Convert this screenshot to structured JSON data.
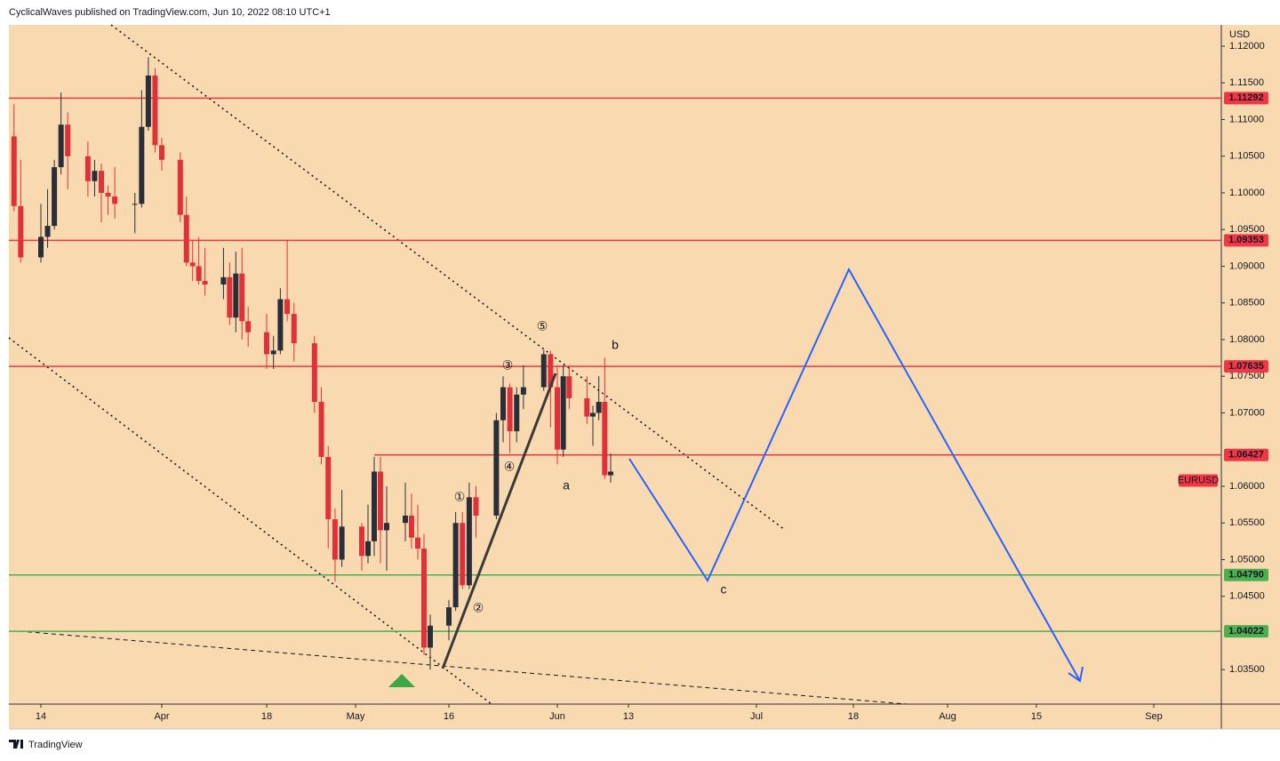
{
  "header": {
    "text": "CyclicalWaves published on TradingView.com, Jun 10, 2022 08:10 UTC+1"
  },
  "footer": {
    "brand": "TradingView"
  },
  "chart_data": {
    "type": "candlestick",
    "currency": "USD",
    "symbol": "EURUSD",
    "up_color": "#2a2e39",
    "down_color": "#e0303a",
    "x": [
      "03-10",
      "03-11",
      "03-14",
      "03-15",
      "03-16",
      "03-17",
      "03-18",
      "03-21",
      "03-22",
      "03-23",
      "03-24",
      "03-25",
      "03-28",
      "03-29",
      "03-30",
      "03-31",
      "04-01",
      "04-04",
      "04-05",
      "04-06",
      "04-07",
      "04-08",
      "04-11",
      "04-12",
      "04-13",
      "04-14",
      "04-15",
      "04-18",
      "04-19",
      "04-20",
      "04-21",
      "04-22",
      "04-25",
      "04-26",
      "04-27",
      "04-28",
      "04-29",
      "05-02",
      "05-03",
      "05-04",
      "05-05",
      "05-06",
      "05-09",
      "05-10",
      "05-11",
      "05-12",
      "05-13",
      "05-16",
      "05-17",
      "05-18",
      "05-19",
      "05-20",
      "05-23",
      "05-24",
      "05-25",
      "05-26",
      "05-27",
      "05-30",
      "05-31",
      "06-01",
      "06-02",
      "06-03",
      "06-06",
      "06-07",
      "06-08",
      "06-09",
      "06-10"
    ],
    "open": [
      1.1077,
      1.0982,
      1.0912,
      1.094,
      1.0955,
      1.1035,
      1.1093,
      1.105,
      1.1016,
      1.103,
      1.1,
      1.0995,
      1.0985,
      1.0985,
      1.109,
      1.116,
      1.1065,
      1.1045,
      1.097,
      1.0905,
      1.09,
      1.088,
      1.0875,
      1.0885,
      1.083,
      1.089,
      1.0825,
      1.081,
      1.078,
      1.0785,
      1.0855,
      1.0835,
      1.0795,
      1.0715,
      1.064,
      1.0555,
      1.05,
      1.0545,
      1.0505,
      1.0525,
      1.062,
      1.054,
      1.055,
      1.056,
      1.053,
      1.0515,
      1.038,
      1.041,
      1.0435,
      1.055,
      1.0465,
      1.0585,
      1.056,
      1.069,
      1.0735,
      1.0675,
      1.0725,
      1.0735,
      1.078,
      1.0735,
      1.065,
      1.075,
      1.072,
      1.0695,
      1.07,
      1.0715,
      1.0615
    ],
    "high": [
      1.1121,
      1.1045,
      1.0985,
      1.1005,
      1.1045,
      1.1137,
      1.111,
      1.107,
      1.1045,
      1.104,
      1.101,
      1.1035,
      1.1,
      1.114,
      1.1185,
      1.117,
      1.1075,
      1.1055,
      1.0995,
      1.0935,
      1.094,
      1.0925,
      1.0925,
      1.0905,
      1.092,
      1.0925,
      1.0845,
      1.0835,
      1.0805,
      1.087,
      1.0935,
      1.085,
      1.0805,
      1.0735,
      1.0655,
      1.057,
      1.0595,
      1.055,
      1.0575,
      1.064,
      1.064,
      1.06,
      1.0605,
      1.059,
      1.0575,
      1.0535,
      1.0425,
      1.0445,
      1.0565,
      1.0565,
      1.0605,
      1.06,
      1.07,
      1.075,
      1.074,
      1.0735,
      1.0765,
      1.0786,
      1.0785,
      1.0765,
      1.0765,
      1.0765,
      1.075,
      1.071,
      1.075,
      1.0775,
      1.0645
    ],
    "low": [
      1.0975,
      1.0905,
      1.0905,
      1.0925,
      1.095,
      1.1025,
      1.1005,
      1.0995,
      1.0995,
      1.096,
      1.097,
      1.0965,
      1.0945,
      1.098,
      1.1085,
      1.1055,
      1.103,
      1.096,
      1.09,
      1.088,
      1.0875,
      1.086,
      1.0855,
      1.082,
      1.081,
      1.08,
      1.079,
      1.076,
      1.076,
      1.078,
      1.0825,
      1.077,
      1.07,
      1.063,
      1.0515,
      1.047,
      1.049,
      1.0485,
      1.0495,
      1.0505,
      1.0495,
      1.0485,
      1.0525,
      1.0515,
      1.05,
      1.037,
      1.035,
      1.039,
      1.043,
      1.046,
      1.046,
      1.053,
      1.0555,
      1.066,
      1.0645,
      1.066,
      1.0705,
      1.073,
      1.068,
      1.063,
      1.064,
      1.0705,
      1.0685,
      1.0655,
      1.069,
      1.061,
      1.0605
    ],
    "close": [
      1.0982,
      1.0912,
      1.094,
      1.0955,
      1.1035,
      1.1093,
      1.105,
      1.1016,
      1.103,
      1.1,
      1.0995,
      1.0985,
      1.0985,
      1.109,
      1.116,
      1.1065,
      1.1045,
      1.097,
      1.0905,
      1.09,
      1.088,
      1.0875,
      1.0885,
      1.083,
      1.089,
      1.0825,
      1.081,
      1.078,
      1.0785,
      1.0855,
      1.0835,
      1.0795,
      1.0715,
      1.064,
      1.0555,
      1.05,
      1.0545,
      1.0505,
      1.0525,
      1.062,
      1.054,
      1.055,
      1.056,
      1.053,
      1.0515,
      1.038,
      1.041,
      1.0435,
      1.055,
      1.0465,
      1.0585,
      1.056,
      1.069,
      1.0735,
      1.0675,
      1.0725,
      1.0735,
      1.078,
      1.0735,
      1.065,
      1.075,
      1.072,
      1.0695,
      1.07,
      1.0715,
      1.0615,
      1.062
    ],
    "ylim": [
      1.0303,
      1.1229
    ],
    "yticks": [
      {
        "value": 1.12,
        "label": "1.12000"
      },
      {
        "value": 1.115,
        "label": "1.11500"
      },
      {
        "value": 1.11,
        "label": "1.11000"
      },
      {
        "value": 1.105,
        "label": "1.10500"
      },
      {
        "value": 1.1,
        "label": "1.10000"
      },
      {
        "value": 1.095,
        "label": "1.09500"
      },
      {
        "value": 1.09,
        "label": "1.09000"
      },
      {
        "value": 1.085,
        "label": "1.08500"
      },
      {
        "value": 1.08,
        "label": "1.08000"
      },
      {
        "value": 1.075,
        "label": "1.07500"
      },
      {
        "value": 1.07,
        "label": "1.07000"
      },
      {
        "value": 1.06,
        "label": "1.06000"
      },
      {
        "value": 1.055,
        "label": "1.05500"
      },
      {
        "value": 1.05,
        "label": "1.05000"
      },
      {
        "value": 1.045,
        "label": "1.04500"
      },
      {
        "value": 1.035,
        "label": "1.03500"
      }
    ],
    "xticks": [
      {
        "value": "03-14",
        "label": "14"
      },
      {
        "value": "04-01",
        "label": "Apr"
      },
      {
        "value": "04-18",
        "label": "18"
      },
      {
        "value": "05-01",
        "label": "May"
      },
      {
        "value": "05-16",
        "label": "16"
      },
      {
        "value": "06-01",
        "label": "Jun"
      },
      {
        "value": "06-13",
        "label": "13"
      },
      {
        "value": "07-01",
        "label": "Jul"
      },
      {
        "value": "07-18",
        "label": "18"
      },
      {
        "value": "08-01",
        "label": "Aug"
      },
      {
        "value": "08-15",
        "label": "15"
      },
      {
        "value": "09-01",
        "label": "Sep"
      }
    ],
    "levels": [
      {
        "value": 1.11292,
        "color": "#f23645"
      },
      {
        "value": 1.09353,
        "color": "#f23645"
      },
      {
        "value": 1.07635,
        "color": "#f23645"
      },
      {
        "value": 1.06427,
        "color": "#f23645",
        "from": "05-04"
      },
      {
        "value": 1.0479,
        "label": "1.04790",
        "color": "#4caf50"
      },
      {
        "value": 1.04022,
        "color": "#4caf50"
      }
    ],
    "annotations": [
      "⑤",
      "③",
      "④",
      "①",
      "②",
      "a",
      "b",
      "c"
    ]
  }
}
